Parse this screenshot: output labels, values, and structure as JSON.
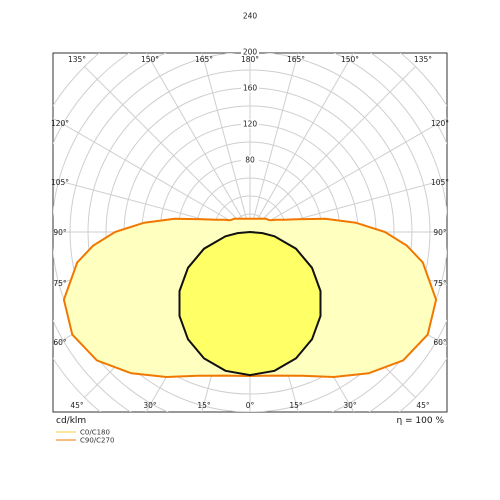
{
  "chart_data": {
    "type": "polar-luminous-intensity",
    "unit_label": "cd/klm",
    "efficiency_label": "η = 100 %",
    "radial_ticks": [
      80,
      120,
      160,
      200,
      240
    ],
    "r_max": 260,
    "angle_labels": [
      "135°",
      "150°",
      "165°",
      "180°",
      "165°",
      "150°",
      "135°",
      "120°",
      "120°",
      "105°",
      "105°",
      "90°",
      "90°",
      "75°",
      "75°",
      "60°",
      "60°",
      "45°",
      "30°",
      "15°",
      "0°",
      "15°",
      "30°",
      "45°"
    ],
    "grid": true,
    "legend_position": "bottom-left",
    "series": [
      {
        "name": "C0/C180",
        "color": "#f5cc3a",
        "fill": "#ffff66",
        "gamma_deg": [
          0,
          10,
          20,
          30,
          40,
          50,
          60,
          70,
          80,
          85,
          90
        ],
        "intensity_cd_klm": [
          159,
          156.6,
          149.4,
          137.7,
          121.8,
          102.2,
          79.5,
          54.4,
          27.6,
          13.9,
          0
        ]
      },
      {
        "name": "C90/C270",
        "color": "#f07800",
        "fill": "#ffffc0",
        "gamma_deg": [
          0,
          10,
          20,
          30,
          40,
          50,
          60,
          70,
          80,
          85,
          90,
          95,
          100,
          105,
          110,
          115,
          120,
          125,
          130
        ],
        "intensity_cd_klm": [
          160,
          162,
          170,
          186,
          205,
          222,
          228,
          220,
          195,
          175,
          150,
          118,
          85,
          55,
          40,
          32,
          26,
          24,
          23
        ]
      }
    ]
  }
}
